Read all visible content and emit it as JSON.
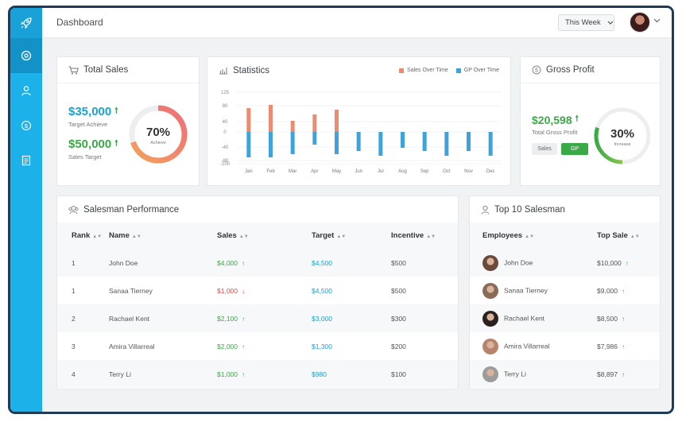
{
  "topbar": {
    "title": "Dashboard",
    "week_label": "This Week"
  },
  "total_sales": {
    "title": "Total Sales",
    "achieve_value": "$35,000",
    "achieve_label": "Target Achieve",
    "target_value": "$50,000",
    "target_label": "Sales Target",
    "percent_text": "70%",
    "percent": 70,
    "percent_label": "Achieve"
  },
  "statistics": {
    "title": "Statistics",
    "legend_sales": "Sales Over Time",
    "legend_gp": "GP Over Time"
  },
  "chart_data": {
    "type": "bar",
    "categories": [
      "Jan",
      "Feb",
      "Mar",
      "Apr",
      "May",
      "Jun",
      "Jul",
      "Aug",
      "Sep",
      "Oct",
      "Nov",
      "Dec"
    ],
    "y_ticks": [
      "125",
      "80",
      "40",
      "0",
      "-40",
      "-80",
      "-100"
    ],
    "series": [
      {
        "name": "Sales Over Time",
        "color": "#ea8b72",
        "values": [
          75,
          85,
          35,
          55,
          70,
          0,
          0,
          0,
          0,
          0,
          0,
          0
        ]
      },
      {
        "name": "GP Over Time",
        "color": "#3fa3db",
        "values": [
          -80,
          -80,
          -70,
          -40,
          -70,
          -60,
          -75,
          -50,
          -60,
          -75,
          -60,
          -75
        ]
      }
    ]
  },
  "gross_profit": {
    "title": "Gross Profit",
    "value": "$20,598",
    "label": "Total Gross Profit",
    "tab_sales": "Sales",
    "tab_gp": "GP",
    "percent_text": "30%",
    "percent": 30,
    "percent_label": "Increase"
  },
  "salesman": {
    "title": "Salesman Performance",
    "columns": [
      "Rank",
      "Name",
      "Sales",
      "Target",
      "Incentive"
    ],
    "rows": [
      {
        "rank": "1",
        "name": "John Doe",
        "sales": "$4,000",
        "trend": "up",
        "target": "$4,500",
        "incentive": "$500"
      },
      {
        "rank": "1",
        "name": "Sanaa Tierney",
        "sales": "$1,000",
        "trend": "down",
        "target": "$4,500",
        "incentive": "$500"
      },
      {
        "rank": "2",
        "name": "Rachael Kent",
        "sales": "$2,100",
        "trend": "up",
        "target": "$3,000",
        "incentive": "$300"
      },
      {
        "rank": "3",
        "name": "Amira Villarreal",
        "sales": "$2,000",
        "trend": "up",
        "target": "$1,300",
        "incentive": "$200"
      },
      {
        "rank": "4",
        "name": "Terry Li",
        "sales": "$1,000",
        "trend": "up",
        "target": "$980",
        "incentive": "$100"
      }
    ]
  },
  "top10": {
    "title": "Top 10  Salesman",
    "columns": [
      "Employees",
      "Top Sale"
    ],
    "rows": [
      {
        "name": "John Doe",
        "sale": "$10,000",
        "avatar_color": "#6b4a3c"
      },
      {
        "name": "Sanaa Tierney",
        "sale": "$9,000",
        "avatar_color": "#8a6b57"
      },
      {
        "name": "Rachael Kent",
        "sale": "$8,500",
        "avatar_color": "#2b2220"
      },
      {
        "name": "Amira Villarreal",
        "sale": "$7,986",
        "avatar_color": "#b7836a"
      },
      {
        "name": "Terry Li",
        "sale": "$8,897",
        "avatar_color": "#9c9c9c"
      }
    ]
  }
}
